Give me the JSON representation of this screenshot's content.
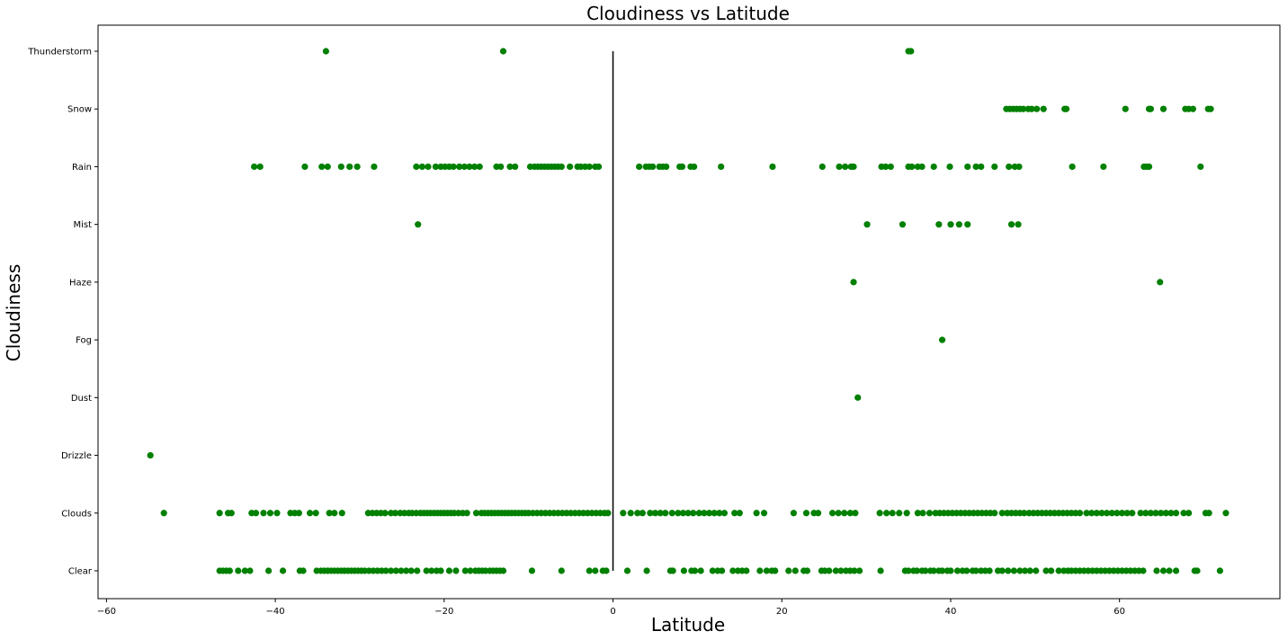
{
  "chart_data": {
    "type": "scatter",
    "title": "Cloudiness vs Latitude",
    "xlabel": "Latitude",
    "ylabel": "Cloudiness",
    "xlim": [
      -61,
      79
    ],
    "x_ticks": [
      -60,
      -40,
      -20,
      0,
      20,
      40,
      60
    ],
    "categories": [
      "Clear",
      "Clouds",
      "Drizzle",
      "Dust",
      "Fog",
      "Haze",
      "Mist",
      "Rain",
      "Snow",
      "Thunderstorm"
    ],
    "grid": false,
    "marker_color": "#008000",
    "reference_line": {
      "x": 0,
      "y_from": "Clear",
      "y_to": "Thunderstorm",
      "color": "#000000"
    },
    "points": {
      "Thunderstorm": [
        -34,
        -13,
        35,
        35.3
      ],
      "Snow": [
        46.6,
        47,
        47.4,
        47.8,
        48.2,
        48.6,
        49.2,
        49.6,
        50.2,
        51,
        53.5,
        53.7,
        60.7,
        63.5,
        63.7,
        65.2,
        67.8,
        68.2,
        68.7,
        70.5,
        70.8
      ],
      "Rain": [
        -42.5,
        -41.8,
        -36.5,
        -34.5,
        -33.8,
        -32.2,
        -31.2,
        -30.3,
        -28.3,
        -23.3,
        -22.6,
        -21.9,
        -21,
        -20.4,
        -19.9,
        -19.4,
        -18.9,
        -18.2,
        -17.6,
        -17,
        -16.4,
        -15.8,
        -13.8,
        -13.3,
        -12.2,
        -11.6,
        -9.8,
        -9.3,
        -8.9,
        -8.5,
        -8.1,
        -7.7,
        -7.3,
        -6.9,
        -6.5,
        -6.1,
        -5.1,
        -4.2,
        -3.8,
        -3.3,
        -2.8,
        -2.1,
        -1.7,
        3.1,
        3.9,
        4.3,
        4.7,
        5.5,
        5.9,
        6.3,
        7.9,
        8.2,
        9.2,
        9.6,
        12.8,
        18.9,
        24.8,
        26.8,
        27.5,
        28.2,
        28.5,
        31.8,
        32.3,
        32.9,
        35,
        35.4,
        36.1,
        36.6,
        38,
        39.9,
        42,
        43,
        43.6,
        45.2,
        46.9,
        47.6,
        48.1,
        54.4,
        58.1,
        62.9,
        63.2,
        63.5,
        69.6
      ],
      "Mist": [
        -23.1,
        30.1,
        34.3,
        38.6,
        40,
        41,
        42,
        47.2,
        48
      ],
      "Haze": [
        28.5,
        64.8
      ],
      "Fog": [
        39
      ],
      "Dust": [
        29
      ],
      "Drizzle": [
        -54.8
      ],
      "Clouds": [
        -53.2,
        -46.6,
        -45.6,
        -45.2,
        -42.8,
        -42.3,
        -41.4,
        -40.6,
        -39.8,
        -38.2,
        -37.7,
        -37.2,
        -35.9,
        -35.2,
        -33.6,
        -33,
        -32.1,
        -29,
        -28.5,
        -28,
        -27.5,
        -27,
        -26.3,
        -25.8,
        -25.2,
        -24.7,
        -24.2,
        -23.8,
        -23.3,
        -22.8,
        -22.4,
        -22,
        -21.6,
        -21.2,
        -20.8,
        -20.4,
        -20,
        -19.6,
        -19.2,
        -18.8,
        -18.3,
        -17.8,
        -17.3,
        -16.2,
        -15.6,
        -15.2,
        -14.8,
        -14.4,
        -14,
        -13.6,
        -13.2,
        -12.8,
        -12.4,
        -12,
        -11.6,
        -11.2,
        -10.8,
        -10.4,
        -10,
        -9.5,
        -9,
        -8.5,
        -8,
        -7.5,
        -7,
        -6.5,
        -6,
        -5.5,
        -5,
        -4.5,
        -4,
        -3.5,
        -3,
        -2.5,
        -2,
        -1.5,
        -1,
        -0.6,
        1.2,
        2.1,
        2.9,
        3.5,
        4.4,
        5,
        5.6,
        6.2,
        7,
        7.7,
        8.3,
        8.9,
        9.5,
        10.2,
        10.8,
        11.4,
        12,
        12.6,
        13.2,
        14.4,
        15,
        17,
        17.9,
        21.4,
        22.9,
        23.8,
        24.3,
        26,
        26.7,
        27.4,
        28.1,
        28.7,
        31.6,
        32.4,
        33.1,
        33.9,
        34.8,
        36.1,
        36.7,
        37.5,
        38.2,
        38.7,
        39.2,
        39.7,
        40.2,
        40.7,
        41.2,
        41.7,
        42.2,
        42.7,
        43.2,
        43.7,
        44.2,
        44.7,
        45.2,
        46.1,
        46.7,
        47.2,
        47.7,
        48.2,
        48.7,
        49.3,
        49.8,
        50.3,
        50.8,
        51.3,
        51.8,
        52.3,
        52.8,
        53.3,
        53.8,
        54.3,
        54.8,
        55.3,
        56.1,
        56.7,
        57.3,
        57.9,
        58.5,
        59.1,
        59.7,
        60.3,
        60.9,
        61.5,
        62.5,
        63.1,
        63.7,
        64.3,
        64.9,
        65.5,
        66.1,
        66.7,
        67.6,
        68.2,
        70.2,
        70.6,
        72.6
      ],
      "Clear": [
        -46.6,
        -46.2,
        -45.8,
        -45.4,
        -44.4,
        -43.6,
        -43,
        -40.8,
        -39.1,
        -37.1,
        -36.7,
        -35.1,
        -34.6,
        -34.2,
        -33.8,
        -33.4,
        -33,
        -32.6,
        -32.2,
        -31.8,
        -31.4,
        -31,
        -30.6,
        -30.2,
        -29.8,
        -29.4,
        -28.9,
        -28.4,
        -27.9,
        -27.4,
        -26.9,
        -26.3,
        -25.7,
        -25.1,
        -24.5,
        -23.9,
        -23.2,
        -22.1,
        -21.5,
        -20.9,
        -20.4,
        -19.4,
        -18.6,
        -17.5,
        -16.9,
        -16.3,
        -15.9,
        -15.5,
        -15.1,
        -14.6,
        -14.2,
        -13.8,
        -13.4,
        -13,
        -9.6,
        -6.1,
        -2.8,
        -2.1,
        -1.2,
        -0.8,
        1.7,
        4,
        6.8,
        7.1,
        8.4,
        9.3,
        9.7,
        10.4,
        11.8,
        12.4,
        12.9,
        14.2,
        14.8,
        15.3,
        15.8,
        17.4,
        18.2,
        18.8,
        19.2,
        20.8,
        21.6,
        22.6,
        23,
        24.7,
        25.1,
        25.6,
        26.4,
        27,
        27.6,
        28.1,
        28.6,
        29.2,
        31.7,
        34.6,
        35,
        35.6,
        36,
        36.6,
        37,
        37.6,
        38,
        38.6,
        39,
        39.6,
        40,
        40.8,
        41.4,
        41.9,
        42.6,
        43,
        43.6,
        44.1,
        44.6,
        45.6,
        46.1,
        46.8,
        47.5,
        48.2,
        48.8,
        49.4,
        50.1,
        51.3,
        51.9,
        52.8,
        53.4,
        53.9,
        54.3,
        54.8,
        55.3,
        55.8,
        56.3,
        56.8,
        57.3,
        57.8,
        58.3,
        58.8,
        59.3,
        59.8,
        60.3,
        60.8,
        61.3,
        61.8,
        62.3,
        62.8,
        64.4,
        65.2,
        65.9,
        66.7,
        68.9,
        69.2,
        71.9
      ]
    }
  }
}
